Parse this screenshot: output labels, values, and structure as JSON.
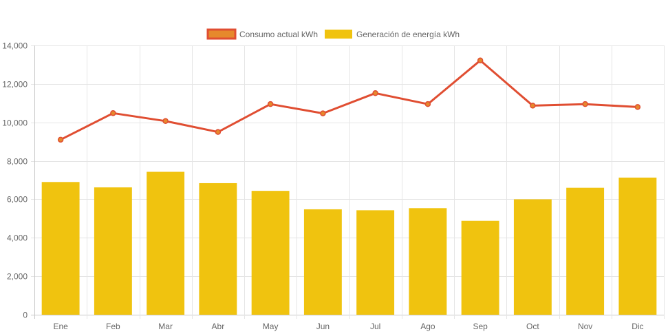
{
  "chart_data": {
    "type": "bar",
    "categories": [
      "Ene",
      "Feb",
      "Mar",
      "Abr",
      "May",
      "Jun",
      "Jul",
      "Ago",
      "Sep",
      "Oct",
      "Nov",
      "Dic"
    ],
    "series": [
      {
        "name": "Consumo actual kWh",
        "kind": "line",
        "values": [
          9100,
          10480,
          10070,
          9500,
          10950,
          10470,
          11520,
          10950,
          13220,
          10870,
          10950,
          10800
        ],
        "color": "#e04e32",
        "fill": "#e6892c"
      },
      {
        "name": "Generación de energía kWh",
        "kind": "bar",
        "values": [
          6900,
          6620,
          7430,
          6840,
          6440,
          5480,
          5430,
          5540,
          4880,
          6000,
          6600,
          7130
        ],
        "color": "#f0c30f"
      }
    ],
    "ylim": [
      0,
      14000
    ],
    "yticks": [
      0,
      2000,
      4000,
      6000,
      8000,
      10000,
      12000,
      14000
    ],
    "ytick_labels": [
      "0",
      "2,000",
      "4,000",
      "6,000",
      "8,000",
      "10,000",
      "12,000",
      "14,000"
    ],
    "title": "",
    "xlabel": "",
    "ylabel": "",
    "grid": true,
    "legend_position": "top-center"
  }
}
